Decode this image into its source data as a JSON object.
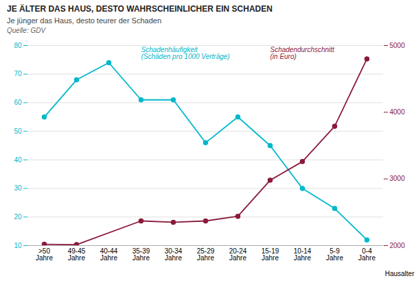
{
  "chart_data": {
    "type": "line",
    "title": "JE ÄLTER DAS HAUS, DESTO WAHRSCHEINLICHER EIN SCHADEN",
    "subtitle": "Je jünger das Haus, desto teurer der Schaden",
    "source": "Quelle: GDV",
    "xlabel": "Hausalter",
    "categories": [
      ">50\nJahre",
      "49-45\nJahre",
      "40-44\nJahre",
      "35-39\nJahre",
      "30-34\nJahre",
      "25-29\nJahre",
      "20-24\nJahre",
      "15-19\nJahre",
      "10-14\nJahre",
      "5-9\nJahre",
      "0-4\nJahre"
    ],
    "series": [
      {
        "name": "Schadenhäufigkeit\n(Schäden pro 1000 Verträge)",
        "color": "#00b8cc",
        "marker": "circle",
        "values": [
          55,
          68,
          74,
          61,
          61,
          46,
          55,
          45,
          30,
          23,
          12
        ]
      },
      {
        "name": "Schadendurchschnitt\n(in Euro)",
        "color": "#8b1a3a",
        "marker": "circle",
        "axis": "y2",
        "values": [
          2020,
          2015,
          null,
          2370,
          2350,
          2370,
          2440,
          2980,
          3260,
          3790,
          4800
        ]
      }
    ],
    "ylim": [
      10,
      80
    ],
    "yticks": [
      10,
      20,
      30,
      40,
      50,
      60,
      70,
      80
    ],
    "y2lim": [
      2000,
      5000
    ],
    "y2ticks": [
      2000,
      3000,
      4000,
      5000
    ],
    "grid": true
  }
}
